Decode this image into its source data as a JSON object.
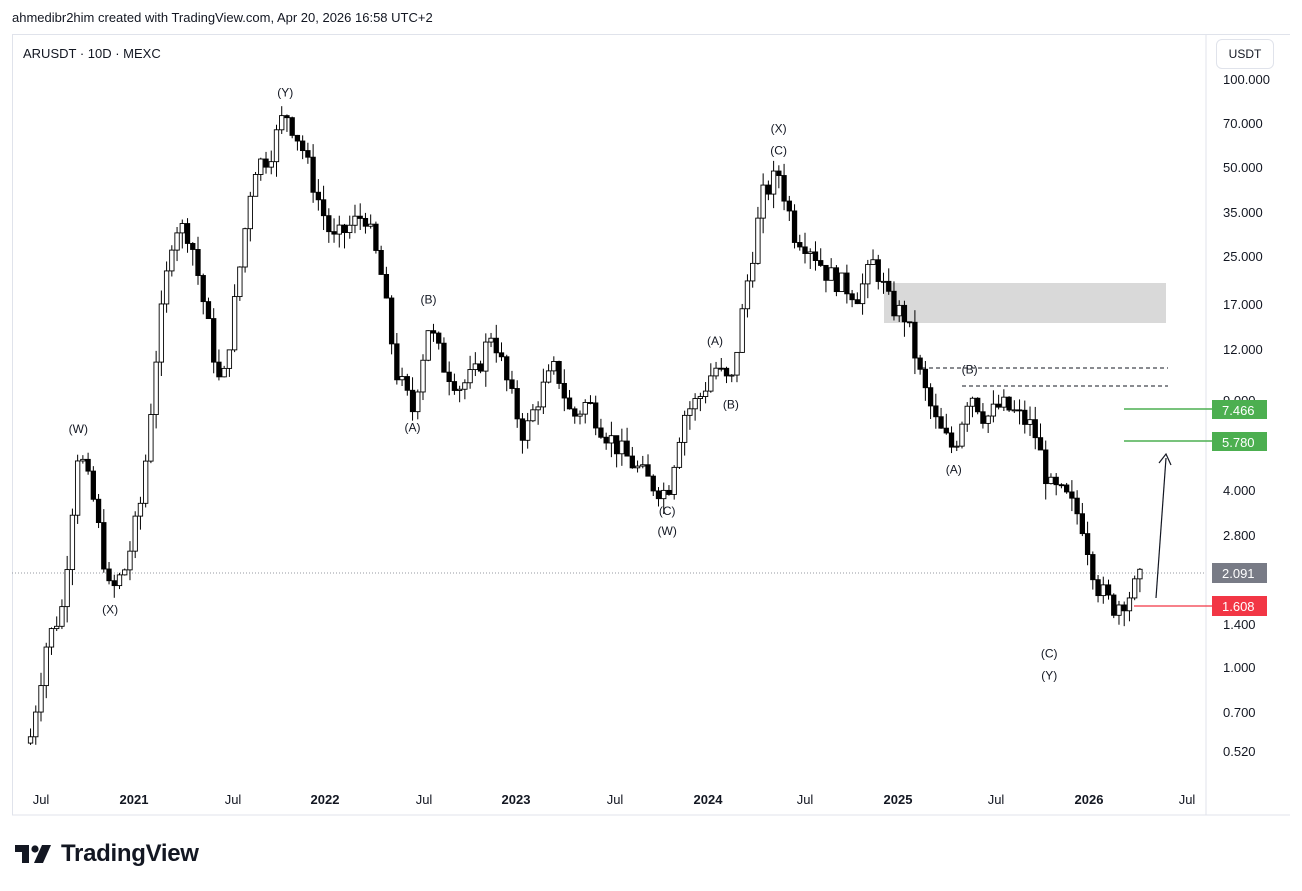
{
  "header": {
    "attribution": "ahmedibr2him created with TradingView.com, Apr 20, 2026 16:58 UTC+2"
  },
  "chart_header": {
    "symbol": "ARUSDT · 10D · MEXC",
    "currency": "USDT"
  },
  "footer": {
    "brand": "TradingView"
  },
  "colors": {
    "up_candle": "#ffffff",
    "down_candle": "#000000",
    "target_line": "#4caf50",
    "stop_line": "#f23645",
    "current_price": "#787b86",
    "zone": "#d9d9d9"
  },
  "chart_data": {
    "type": "candlestick",
    "scale": "log",
    "y_ticks": [
      "100.000",
      "70.000",
      "50.000",
      "35.000",
      "25.000",
      "17.000",
      "12.000",
      "9.000",
      "5.780",
      "4.000",
      "2.800",
      "2.091",
      "1.400",
      "1.000",
      "0.700",
      "0.520"
    ],
    "x_ticks": [
      "Jul",
      "2021",
      "Jul",
      "2022",
      "Jul",
      "2023",
      "Jul",
      "2024",
      "Jul",
      "2025",
      "Jul",
      "2026",
      "Jul"
    ],
    "price_labels": {
      "current": "2.091",
      "target_1": "7.466",
      "target_2": "5.780",
      "stop": "1.608"
    },
    "resistance_zone": {
      "low": 15.0,
      "high": 20.2
    },
    "swing_path_close": [
      [
        "2020-06",
        0.58
      ],
      [
        "2020-07",
        1.2
      ],
      [
        "2020-08",
        1.6
      ],
      [
        "2020-09",
        5.6
      ],
      [
        "2020-10",
        3.6
      ],
      [
        "2020-11",
        1.75
      ],
      [
        "2020-12",
        2.2
      ],
      [
        "2021-01",
        3.8
      ],
      [
        "2021-02",
        13.0
      ],
      [
        "2021-03",
        32.0
      ],
      [
        "2021-04",
        30.0
      ],
      [
        "2021-05",
        16.0
      ],
      [
        "2021-06",
        8.5
      ],
      [
        "2021-07",
        20.0
      ],
      [
        "2021-08",
        50.0
      ],
      [
        "2021-09",
        55.0
      ],
      [
        "2021-10",
        78.0
      ],
      [
        "2021-11",
        60.0
      ],
      [
        "2021-12",
        40.0
      ],
      [
        "2022-01",
        28.0
      ],
      [
        "2022-03",
        35.0
      ],
      [
        "2022-04",
        22.0
      ],
      [
        "2022-05",
        10.0
      ],
      [
        "2022-06",
        7.5
      ],
      [
        "2022-07",
        14.5
      ],
      [
        "2022-08",
        10.5
      ],
      [
        "2022-09",
        9.0
      ],
      [
        "2022-10",
        10.0
      ],
      [
        "2022-11",
        14.0
      ],
      [
        "2022-12",
        9.0
      ],
      [
        "2023-01",
        6.1
      ],
      [
        "2023-02",
        8.5
      ],
      [
        "2023-03",
        10.5
      ],
      [
        "2023-04",
        7.0
      ],
      [
        "2023-05",
        8.0
      ],
      [
        "2023-06",
        6.4
      ],
      [
        "2023-07",
        5.5
      ],
      [
        "2023-08",
        4.8
      ],
      [
        "2023-09",
        4.2
      ],
      [
        "2023-10",
        3.9
      ],
      [
        "2023-11",
        7.2
      ],
      [
        "2023-12",
        8.2
      ],
      [
        "2024-01",
        10.5
      ],
      [
        "2024-02",
        9.0
      ],
      [
        "2024-03",
        20.0
      ],
      [
        "2024-04",
        40.0
      ],
      [
        "2024-05",
        48.0
      ],
      [
        "2024-06",
        30.0
      ],
      [
        "2024-07",
        27.0
      ],
      [
        "2024-08",
        22.0
      ],
      [
        "2024-09",
        20.0
      ],
      [
        "2024-10",
        18.5
      ],
      [
        "2024-11",
        24.0
      ],
      [
        "2024-12",
        17.0
      ],
      [
        "2025-01",
        15.5
      ],
      [
        "2025-02",
        9.3
      ],
      [
        "2025-03",
        6.5
      ],
      [
        "2025-04",
        5.5
      ],
      [
        "2025-05",
        8.8
      ],
      [
        "2025-06",
        7.0
      ],
      [
        "2025-07",
        7.8
      ],
      [
        "2025-08",
        7.2
      ],
      [
        "2025-09",
        6.5
      ],
      [
        "2025-10",
        4.1
      ],
      [
        "2025-11",
        3.8
      ],
      [
        "2025-12",
        3.2
      ],
      [
        "2026-01",
        1.9
      ],
      [
        "2026-02",
        1.6
      ],
      [
        "2026-03",
        1.75
      ],
      [
        "2026-04",
        2.09
      ]
    ],
    "wave_labels": [
      {
        "text": "(W)",
        "date": "2020-09"
      },
      {
        "text": "(X)",
        "date": "2020-11"
      },
      {
        "text": "(Y)",
        "date": "2021-10"
      },
      {
        "text": "(A)",
        "date": "2022-06"
      },
      {
        "text": "(B)",
        "date": "2022-07"
      },
      {
        "text": "(C)",
        "date": "2023-10"
      },
      {
        "text": "(W)",
        "date": "2023-10"
      },
      {
        "text": "(A)",
        "date": "2024-01"
      },
      {
        "text": "(B)",
        "date": "2024-02"
      },
      {
        "text": "(X)",
        "date": "2024-05"
      },
      {
        "text": "(C)",
        "date": "2024-05"
      },
      {
        "text": "(A)",
        "date": "2025-04"
      },
      {
        "text": "(B)",
        "date": "2025-05"
      },
      {
        "text": "(C)",
        "date": "2025-10"
      },
      {
        "text": "(Y)",
        "date": "2025-10"
      }
    ]
  }
}
